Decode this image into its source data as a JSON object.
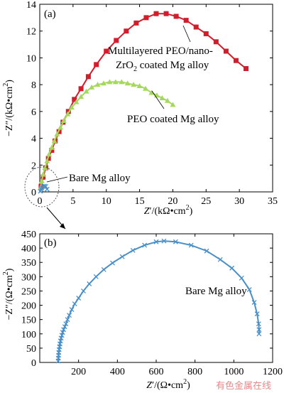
{
  "chart_data": [
    {
      "panel": "(a)",
      "type": "scatter",
      "xlabel_pre": "Z",
      "xlabel_prime": "′",
      "xlabel_unit": "/(kΩ•cm",
      "xlabel_sup": "2",
      "xlabel_end": ")",
      "ylabel_pre": "−Z",
      "ylabel_prime": "″",
      "ylabel_unit": "/(kΩ•cm",
      "ylabel_sup": "2",
      "ylabel_end": ")",
      "xlim": [
        0,
        35
      ],
      "ylim": [
        0,
        14
      ],
      "xticks": [
        "0",
        "5",
        "10",
        "15",
        "20",
        "25",
        "30",
        "35"
      ],
      "yticks": [
        "0",
        "2",
        "4",
        "6",
        "8",
        "10",
        "12",
        "14"
      ],
      "series": [
        {
          "label_line1": "Multilayered PEO/nano-",
          "label_line2_pre": "ZrO",
          "label_line2_sub": "2",
          "label_line2_post": " coated Mg alloy",
          "color": "#d41c2a",
          "marker": "square",
          "points": [
            [
              0.2,
              0.4
            ],
            [
              0.5,
              1.1
            ],
            [
              0.9,
              1.8
            ],
            [
              1.3,
              2.5
            ],
            [
              1.8,
              3.1
            ],
            [
              2.3,
              3.8
            ],
            [
              2.9,
              4.5
            ],
            [
              3.5,
              5.2
            ],
            [
              4.3,
              6.0
            ],
            [
              5.2,
              6.9
            ],
            [
              6.2,
              7.7
            ],
            [
              7.3,
              8.6
            ],
            [
              8.5,
              9.5
            ],
            [
              10,
              10.5
            ],
            [
              11.5,
              11.3
            ],
            [
              13,
              12.0
            ],
            [
              14.5,
              12.6
            ],
            [
              16,
              13.0
            ],
            [
              17.5,
              13.3
            ],
            [
              19,
              13.3
            ],
            [
              20.5,
              13.1
            ],
            [
              22,
              12.8
            ],
            [
              23.5,
              12.3
            ],
            [
              25,
              11.8
            ],
            [
              26.5,
              11.2
            ],
            [
              28,
              10.5
            ],
            [
              29.5,
              9.8
            ],
            [
              31,
              9.2
            ]
          ]
        },
        {
          "label": "PEO coated Mg alloy",
          "color": "#a6d85f",
          "marker": "triangle",
          "points": [
            [
              0.1,
              0.3
            ],
            [
              0.3,
              0.8
            ],
            [
              0.5,
              1.3
            ],
            [
              0.8,
              1.8
            ],
            [
              1.1,
              2.3
            ],
            [
              1.4,
              2.8
            ],
            [
              1.8,
              3.3
            ],
            [
              2.2,
              3.8
            ],
            [
              2.6,
              4.3
            ],
            [
              3.1,
              4.8
            ],
            [
              3.6,
              5.3
            ],
            [
              4.2,
              5.8
            ],
            [
              4.8,
              6.3
            ],
            [
              5.5,
              6.7
            ],
            [
              6.2,
              7.1
            ],
            [
              7,
              7.5
            ],
            [
              7.8,
              7.8
            ],
            [
              8.7,
              8.0
            ],
            [
              9.6,
              8.1
            ],
            [
              10.5,
              8.2
            ],
            [
              11.4,
              8.2
            ],
            [
              12.3,
              8.2
            ],
            [
              13.2,
              8.1
            ],
            [
              14.1,
              8.0
            ],
            [
              15,
              7.9
            ],
            [
              15.9,
              7.7
            ],
            [
              16.8,
              7.4
            ],
            [
              17.6,
              7.2
            ],
            [
              18.4,
              7.0
            ],
            [
              19.2,
              6.8
            ],
            [
              20,
              6.5
            ]
          ]
        },
        {
          "label": "Bare Mg alloy",
          "color": "#4a90c8",
          "marker": "x",
          "points": [
            [
              0.1,
              0.05
            ],
            [
              0.2,
              0.2
            ],
            [
              0.3,
              0.3
            ],
            [
              0.5,
              0.4
            ],
            [
              0.7,
              0.43
            ],
            [
              0.9,
              0.4
            ],
            [
              1.1,
              0.2
            ]
          ]
        }
      ]
    },
    {
      "panel": "(b)",
      "type": "scatter",
      "xlabel_pre": "Z",
      "xlabel_prime": "′",
      "xlabel_unit": "/(Ω•cm",
      "xlabel_sup": "2",
      "xlabel_end": ")",
      "ylabel_pre": "−Z",
      "ylabel_prime": "″",
      "ylabel_unit": "/(Ω•cm",
      "ylabel_sup": "2",
      "ylabel_end": ")",
      "xlim": [
        0,
        1200
      ],
      "ylim": [
        0,
        450
      ],
      "xticks": [
        "200",
        "400",
        "600",
        "800",
        "1000",
        "1200"
      ],
      "yticks": [
        "0",
        "50",
        "100",
        "150",
        "200",
        "250",
        "300",
        "350",
        "400",
        "450"
      ],
      "series": [
        {
          "label": "Bare Mg alloy",
          "color": "#4a90c8",
          "marker": "x",
          "points": [
            [
              95,
              5
            ],
            [
              96,
              15
            ],
            [
              97,
              25
            ],
            [
              98,
              35
            ],
            [
              100,
              45
            ],
            [
              102,
              55
            ],
            [
              104,
              65
            ],
            [
              107,
              75
            ],
            [
              110,
              85
            ],
            [
              114,
              95
            ],
            [
              118,
              105
            ],
            [
              123,
              115
            ],
            [
              129,
              125
            ],
            [
              135,
              135
            ],
            [
              143,
              150
            ],
            [
              152,
              165
            ],
            [
              165,
              185
            ],
            [
              180,
              205
            ],
            [
              200,
              225
            ],
            [
              225,
              250
            ],
            [
              255,
              275
            ],
            [
              290,
              300
            ],
            [
              330,
              325
            ],
            [
              375,
              348
            ],
            [
              425,
              370
            ],
            [
              480,
              392
            ],
            [
              540,
              410
            ],
            [
              600,
              422
            ],
            [
              640,
              425
            ],
            [
              700,
              422
            ],
            [
              780,
              410
            ],
            [
              860,
              390
            ],
            [
              930,
              360
            ],
            [
              990,
              330
            ],
            [
              1040,
              295
            ],
            [
              1080,
              255
            ],
            [
              1105,
              210
            ],
            [
              1120,
              170
            ],
            [
              1128,
              135
            ],
            [
              1130,
              115
            ],
            [
              1130,
              100
            ]
          ]
        }
      ]
    }
  ],
  "watermark": "有色金属在线"
}
